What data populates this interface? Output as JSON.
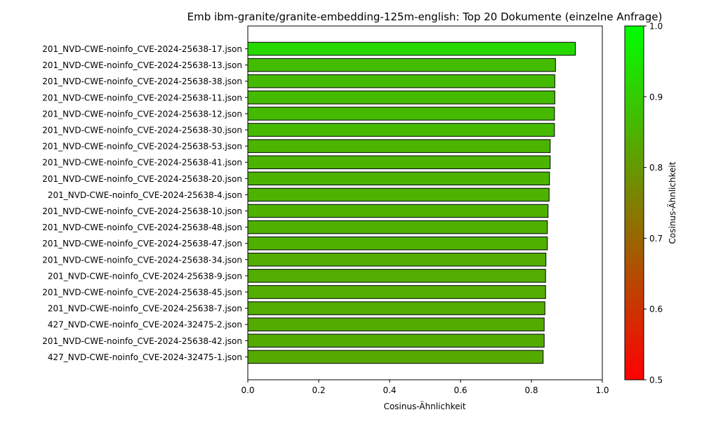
{
  "chart_data": {
    "type": "bar",
    "orientation": "horizontal",
    "title": "Emb ibm-granite/granite-embedding-125m-english: Top 20 Dokumente (einzelne Anfrage)",
    "xlabel": "Cosinus-Ähnlichkeit",
    "ylabel": "",
    "xlim": [
      0.0,
      1.0
    ],
    "xticks": [
      "0.0",
      "0.2",
      "0.4",
      "0.6",
      "0.8",
      "1.0"
    ],
    "grid": false,
    "categories": [
      "201_NVD-CWE-noinfo_CVE-2024-25638-17.json",
      "201_NVD-CWE-noinfo_CVE-2024-25638-13.json",
      "201_NVD-CWE-noinfo_CVE-2024-25638-38.json",
      "201_NVD-CWE-noinfo_CVE-2024-25638-11.json",
      "201_NVD-CWE-noinfo_CVE-2024-25638-12.json",
      "201_NVD-CWE-noinfo_CVE-2024-25638-30.json",
      "201_NVD-CWE-noinfo_CVE-2024-25638-53.json",
      "201_NVD-CWE-noinfo_CVE-2024-25638-41.json",
      "201_NVD-CWE-noinfo_CVE-2024-25638-20.json",
      "201_NVD-CWE-noinfo_CVE-2024-25638-4.json",
      "201_NVD-CWE-noinfo_CVE-2024-25638-10.json",
      "201_NVD-CWE-noinfo_CVE-2024-25638-48.json",
      "201_NVD-CWE-noinfo_CVE-2024-25638-47.json",
      "201_NVD-CWE-noinfo_CVE-2024-25638-34.json",
      "201_NVD-CWE-noinfo_CVE-2024-25638-9.json",
      "201_NVD-CWE-noinfo_CVE-2024-25638-45.json",
      "201_NVD-CWE-noinfo_CVE-2024-25638-7.json",
      "427_NVD-CWE-noinfo_CVE-2024-32475-2.json",
      "201_NVD-CWE-noinfo_CVE-2024-25638-42.json",
      "427_NVD-CWE-noinfo_CVE-2024-32475-1.json"
    ],
    "values": [
      0.924,
      0.868,
      0.866,
      0.866,
      0.865,
      0.865,
      0.853,
      0.853,
      0.851,
      0.85,
      0.847,
      0.845,
      0.845,
      0.841,
      0.84,
      0.84,
      0.838,
      0.836,
      0.836,
      0.833
    ],
    "colorbar": {
      "label": "Cosinus-Ähnlichkeit",
      "range": [
        0.5,
        1.0
      ],
      "ticks": [
        "0.5",
        "0.6",
        "0.7",
        "0.8",
        "0.9",
        "1.0"
      ],
      "color_low": "#ff0000",
      "color_high": "#00ff00"
    },
    "bar_edge_color": "#000000"
  }
}
